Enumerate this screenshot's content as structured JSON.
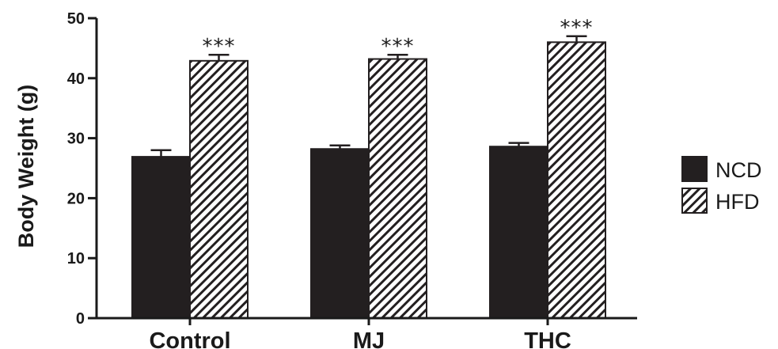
{
  "chart_data": {
    "type": "bar",
    "title": "",
    "xlabel": "",
    "ylabel": "Body Weight  (g)",
    "ylim": [
      0,
      50
    ],
    "yticks": [
      0,
      10,
      20,
      30,
      40,
      50
    ],
    "categories": [
      "Control",
      "MJ",
      "THC"
    ],
    "series": [
      {
        "name": "NCD",
        "values": [
          26.9,
          28.2,
          28.6
        ],
        "errors": [
          1.1,
          0.6,
          0.6
        ],
        "fill": "solid"
      },
      {
        "name": "HFD",
        "values": [
          42.9,
          43.2,
          46.0
        ],
        "errors": [
          1.0,
          0.7,
          1.0
        ],
        "fill": "hatched",
        "significance": [
          "***",
          "***",
          "***"
        ]
      }
    ],
    "grid": false,
    "legend_position": "right",
    "colors": {
      "bar": "#231f20",
      "hatch_bg": "#ffffff",
      "axis": "#1a1a1a"
    }
  }
}
